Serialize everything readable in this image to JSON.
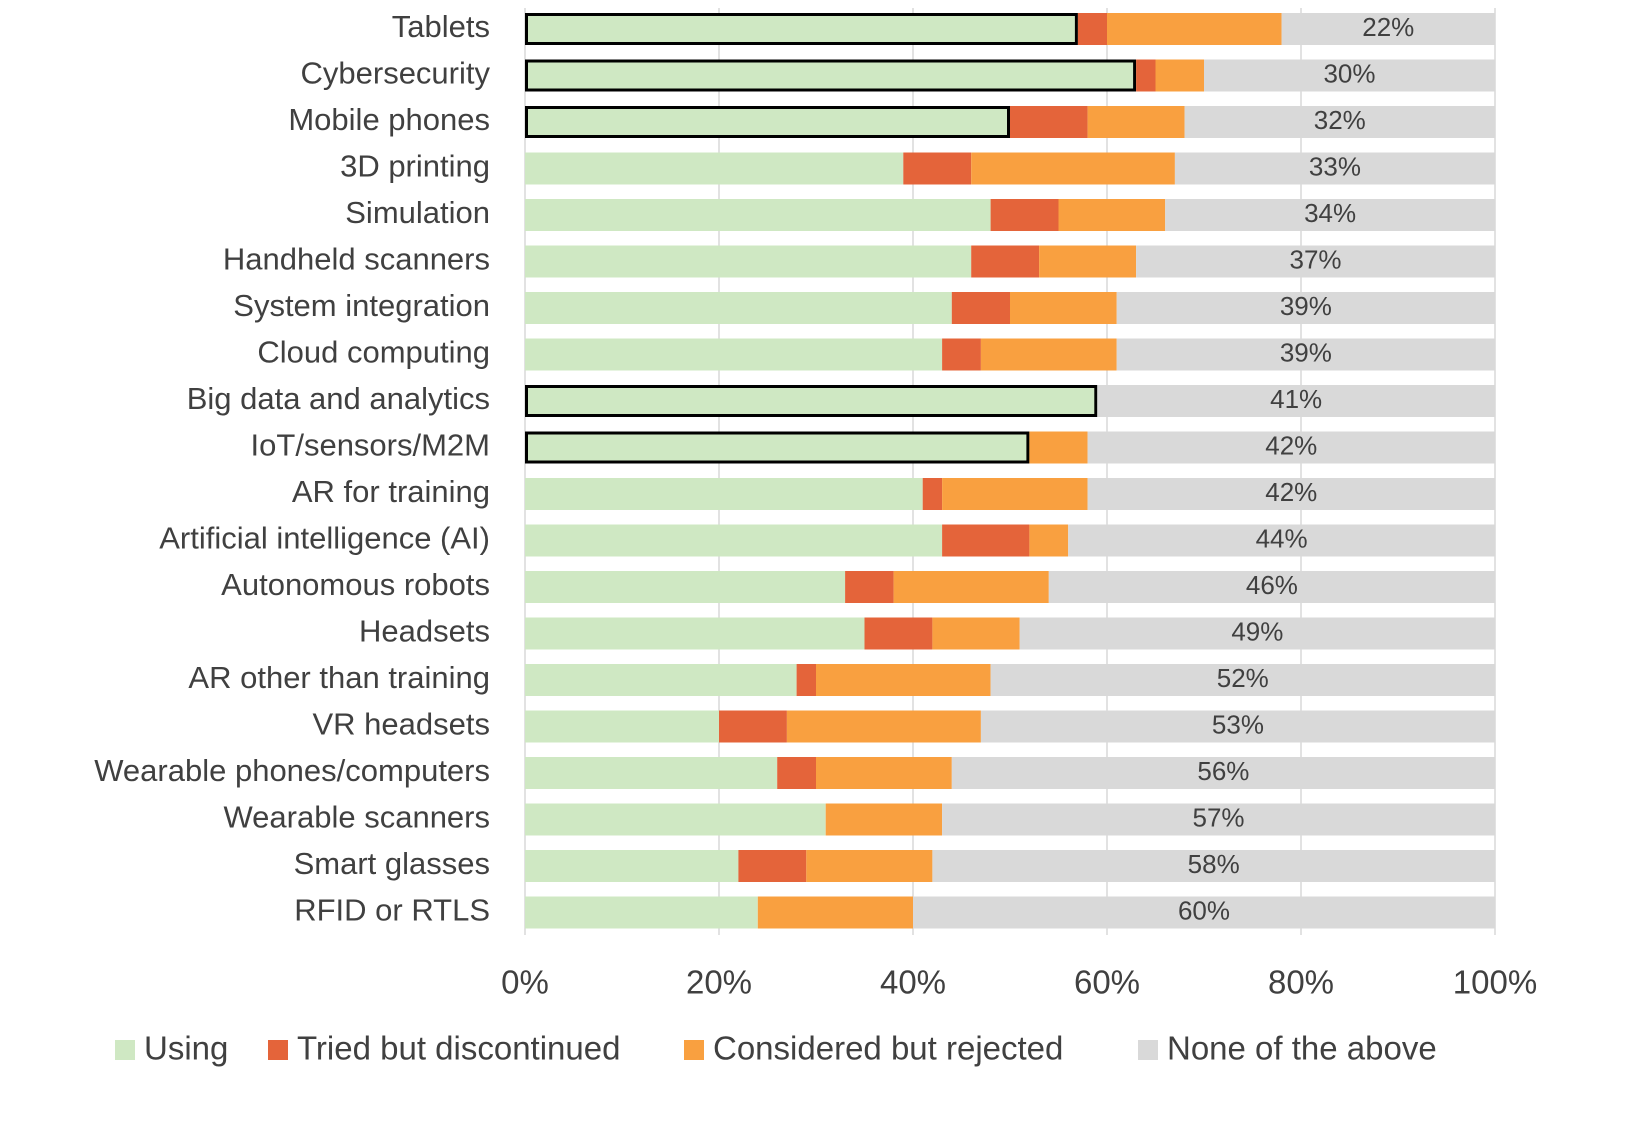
{
  "chart_data": {
    "type": "stacked-bar-horizontal",
    "categories": [
      "Tablets",
      "Cybersecurity",
      "Mobile phones",
      "3D printing",
      "Simulation",
      "Handheld scanners",
      "System integration",
      "Cloud computing",
      "Big data and analytics",
      "IoT/sensors/M2M",
      "AR for training",
      "Artificial intelligence (AI)",
      "Autonomous robots",
      "Headsets",
      "AR other than training",
      "VR headsets",
      "Wearable phones/computers",
      "Wearable scanners",
      "Smart glasses",
      "RFID or RTLS"
    ],
    "series": [
      {
        "name": "Using",
        "color": "#cfe8c3",
        "values": [
          57,
          63,
          50,
          39,
          48,
          46,
          44,
          43,
          59,
          52,
          41,
          43,
          33,
          35,
          28,
          20,
          26,
          31,
          22,
          24
        ]
      },
      {
        "name": "Tried but discontinued",
        "color": "#e4643a",
        "values": [
          3,
          2,
          8,
          7,
          7,
          7,
          6,
          4,
          0,
          0,
          2,
          9,
          5,
          7,
          2,
          7,
          4,
          0,
          7,
          0
        ]
      },
      {
        "name": "Considered but rejected",
        "color": "#f9a040",
        "values": [
          18,
          5,
          10,
          21,
          11,
          10,
          11,
          14,
          0,
          6,
          15,
          4,
          16,
          9,
          18,
          20,
          14,
          12,
          13,
          16
        ]
      },
      {
        "name": "None of the above",
        "color": "#d9d9d9",
        "values": [
          22,
          30,
          32,
          33,
          34,
          37,
          39,
          39,
          41,
          42,
          42,
          44,
          46,
          49,
          52,
          53,
          56,
          57,
          58,
          60
        ],
        "value_labels": [
          "22%",
          "30%",
          "32%",
          "33%",
          "34%",
          "37%",
          "39%",
          "39%",
          "41%",
          "42%",
          "42%",
          "44%",
          "46%",
          "49%",
          "52%",
          "53%",
          "56%",
          "57%",
          "58%",
          "60%"
        ]
      }
    ],
    "highlight": [
      0,
      1,
      2,
      8,
      9
    ],
    "xlim": [
      0,
      100
    ],
    "xticks": [
      {
        "value": 0,
        "label": "0%"
      },
      {
        "value": 20,
        "label": "20%"
      },
      {
        "value": 40,
        "label": "40%"
      },
      {
        "value": 60,
        "label": "60%"
      },
      {
        "value": 80,
        "label": "80%"
      },
      {
        "value": 100,
        "label": "100%"
      }
    ],
    "grid": true,
    "legend": "bottom"
  }
}
